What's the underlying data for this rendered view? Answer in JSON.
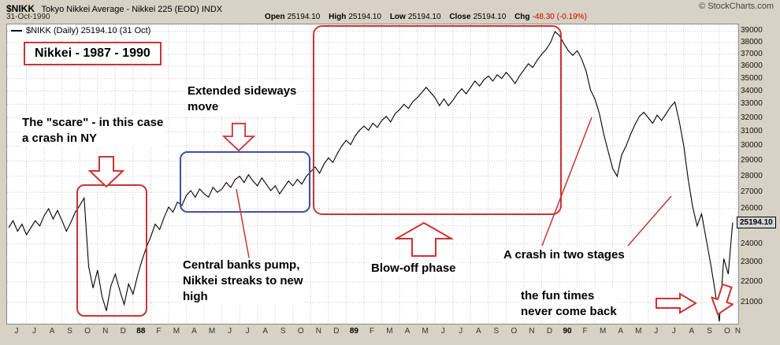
{
  "header": {
    "symbol": "$NIKK",
    "description": "Tokyo Nikkei Average - Nikkei 225 (EOD) INDX",
    "copyright": "© StockCharts.com",
    "date": "31-Oct-1990",
    "quote": {
      "open_label": "Open",
      "open_value": "25194.10",
      "high_label": "High",
      "high_value": "25194.10",
      "low_label": "Low",
      "low_value": "25194.10",
      "close_label": "Close",
      "close_value": "25194.10",
      "chg_label": "Chg",
      "chg_value": "-48.30 (-0.19%)"
    }
  },
  "legend": {
    "text": "$NIKK (Daily) 25194.10 (31 Oct)"
  },
  "price_tag": "25194.10",
  "annotations": {
    "title": "Nikkei - 1987 - 1990",
    "scare": "The \"scare\" - in this case\na crash in NY",
    "sideways": "Extended sideways\nmove",
    "pump": "Central banks pump,\nNikkei streaks to new\nhigh",
    "blowoff": "Blow-off phase",
    "crash": "A crash in two stages",
    "funtimes": "the fun times\nnever come back"
  },
  "colors": {
    "background": "#d7d2c3",
    "annotation_red": "#cc3333",
    "sideways_box_blue": "#4050a8",
    "price_line": "#000000",
    "chg_negative": "#cc0000"
  },
  "chart_data": {
    "type": "line",
    "series_name": "$NIKK (Daily)",
    "x_start": "Jun 1987",
    "x_end": "Oct 1990",
    "points_per_month": 4,
    "y_scale": "log",
    "ylim": [
      20000,
      39600
    ],
    "grid": true,
    "legend_position": "top-left",
    "last_close": 25194.1,
    "y_ticks": [
      39000,
      38000,
      37000,
      36000,
      35000,
      34000,
      33000,
      32000,
      31000,
      30000,
      29000,
      28000,
      27000,
      26000,
      25000,
      24000,
      23000,
      22000,
      21000
    ],
    "x_labels": [
      "J",
      "J",
      "A",
      "S",
      "O",
      "N",
      "D",
      "88",
      "F",
      "M",
      "A",
      "M",
      "J",
      "J",
      "A",
      "S",
      "O",
      "N",
      "D",
      "89",
      "F",
      "M",
      "A",
      "M",
      "J",
      "J",
      "A",
      "S",
      "O",
      "N",
      "D",
      "90",
      "F",
      "M",
      "A",
      "M",
      "J",
      "J",
      "A",
      "S",
      "O",
      "N"
    ],
    "series": [
      {
        "name": "$NIKK",
        "values": [
          24900,
          25300,
          24700,
          25100,
          24500,
          24900,
          25300,
          25000,
          25600,
          26000,
          25400,
          25900,
          25300,
          24700,
          25200,
          25800,
          26200,
          26646,
          22800,
          21700,
          22600,
          21300,
          20600,
          21800,
          22400,
          21600,
          20900,
          21900,
          21400,
          22300,
          23100,
          23800,
          24400,
          25100,
          24800,
          25500,
          26100,
          25800,
          26400,
          26200,
          26800,
          27100,
          26700,
          27200,
          26900,
          26700,
          27300,
          27000,
          27200,
          27600,
          27300,
          27800,
          28000,
          27600,
          28100,
          27700,
          27400,
          27900,
          27500,
          27100,
          27400,
          26900,
          27300,
          27700,
          27400,
          27800,
          27500,
          28000,
          28300,
          28600,
          28200,
          28800,
          29200,
          28900,
          29500,
          30000,
          30400,
          30100,
          30700,
          31100,
          31400,
          31100,
          31600,
          31300,
          31800,
          32100,
          31700,
          32300,
          32600,
          33000,
          32700,
          33200,
          33500,
          33900,
          34300,
          33900,
          33500,
          32900,
          33400,
          32900,
          33300,
          33800,
          34200,
          33800,
          34300,
          34800,
          34400,
          34900,
          35200,
          34800,
          35300,
          35000,
          35500,
          35100,
          34600,
          35200,
          35700,
          36200,
          35900,
          36500,
          37000,
          37400,
          38000,
          38957,
          38600,
          37900,
          37300,
          36900,
          37300,
          36600,
          35600,
          34100,
          33400,
          32300,
          30800,
          29600,
          28500,
          28002,
          29400,
          30000,
          30800,
          31500,
          32100,
          32400,
          32000,
          31600,
          32200,
          31800,
          32300,
          32800,
          33172,
          31700,
          30000,
          27800,
          26100,
          25000,
          25700,
          24300,
          23000,
          21600,
          20100,
          23200,
          22400,
          25194.1
        ]
      }
    ]
  }
}
